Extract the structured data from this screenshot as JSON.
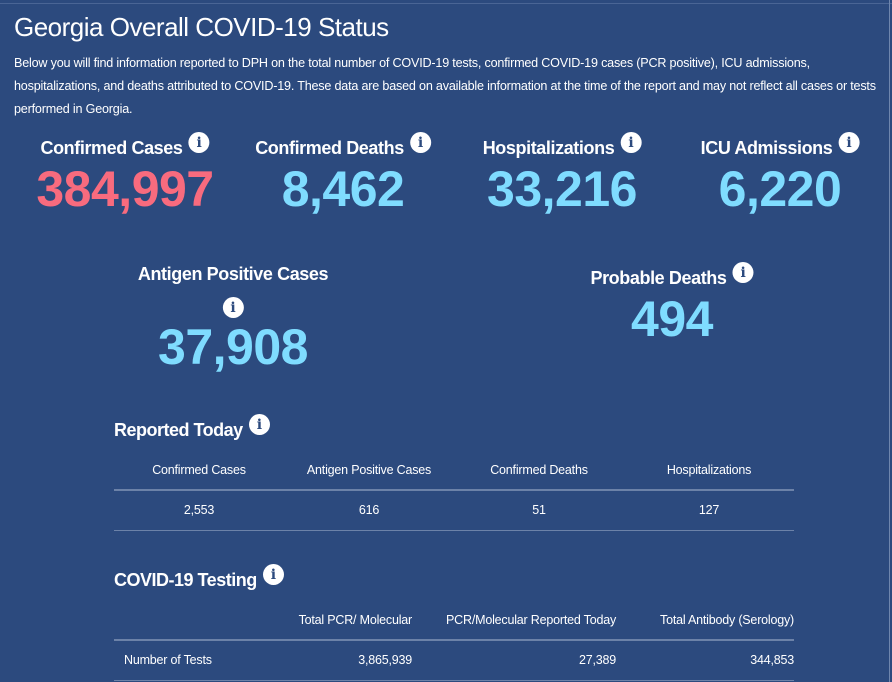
{
  "title": "Georgia Overall COVID-19 Status",
  "description": "Below you will find information reported to DPH on the total number of COVID-19 tests, confirmed COVID-19 cases (PCR positive), ICU admissions, hospitalizations, and deaths attributed to COVID-19. These data are based on available information at the time of the report and may not reflect all cases or tests performed in Georgia.",
  "colors": {
    "background": "#2c4a7e",
    "cases": "#f86b7e",
    "stat": "#7fdcff"
  },
  "stats": [
    {
      "label": "Confirmed Cases",
      "value": "384,997"
    },
    {
      "label": "Confirmed Deaths",
      "value": "8,462"
    },
    {
      "label": "Hospitalizations",
      "value": "33,216"
    },
    {
      "label": "ICU Admissions",
      "value": "6,220"
    },
    {
      "label": "Antigen Positive Cases",
      "value": "37,908"
    },
    {
      "label": "Probable Deaths",
      "value": "494"
    }
  ],
  "info_icon": "i",
  "reported_today": {
    "heading": "Reported Today",
    "columns": [
      "Confirmed Cases",
      "Antigen Positive Cases",
      "Confirmed Deaths",
      "Hospitalizations"
    ],
    "values": [
      "2,553",
      "616",
      "51",
      "127"
    ]
  },
  "testing": {
    "heading": "COVID-19 Testing",
    "columns": [
      "",
      "Total PCR/ Molecular",
      "PCR/Molecular Reported Today",
      "Total Antibody (Serology)"
    ],
    "rows": [
      [
        "Number of Tests",
        "3,865,939",
        "27,389",
        "344,853"
      ]
    ]
  }
}
